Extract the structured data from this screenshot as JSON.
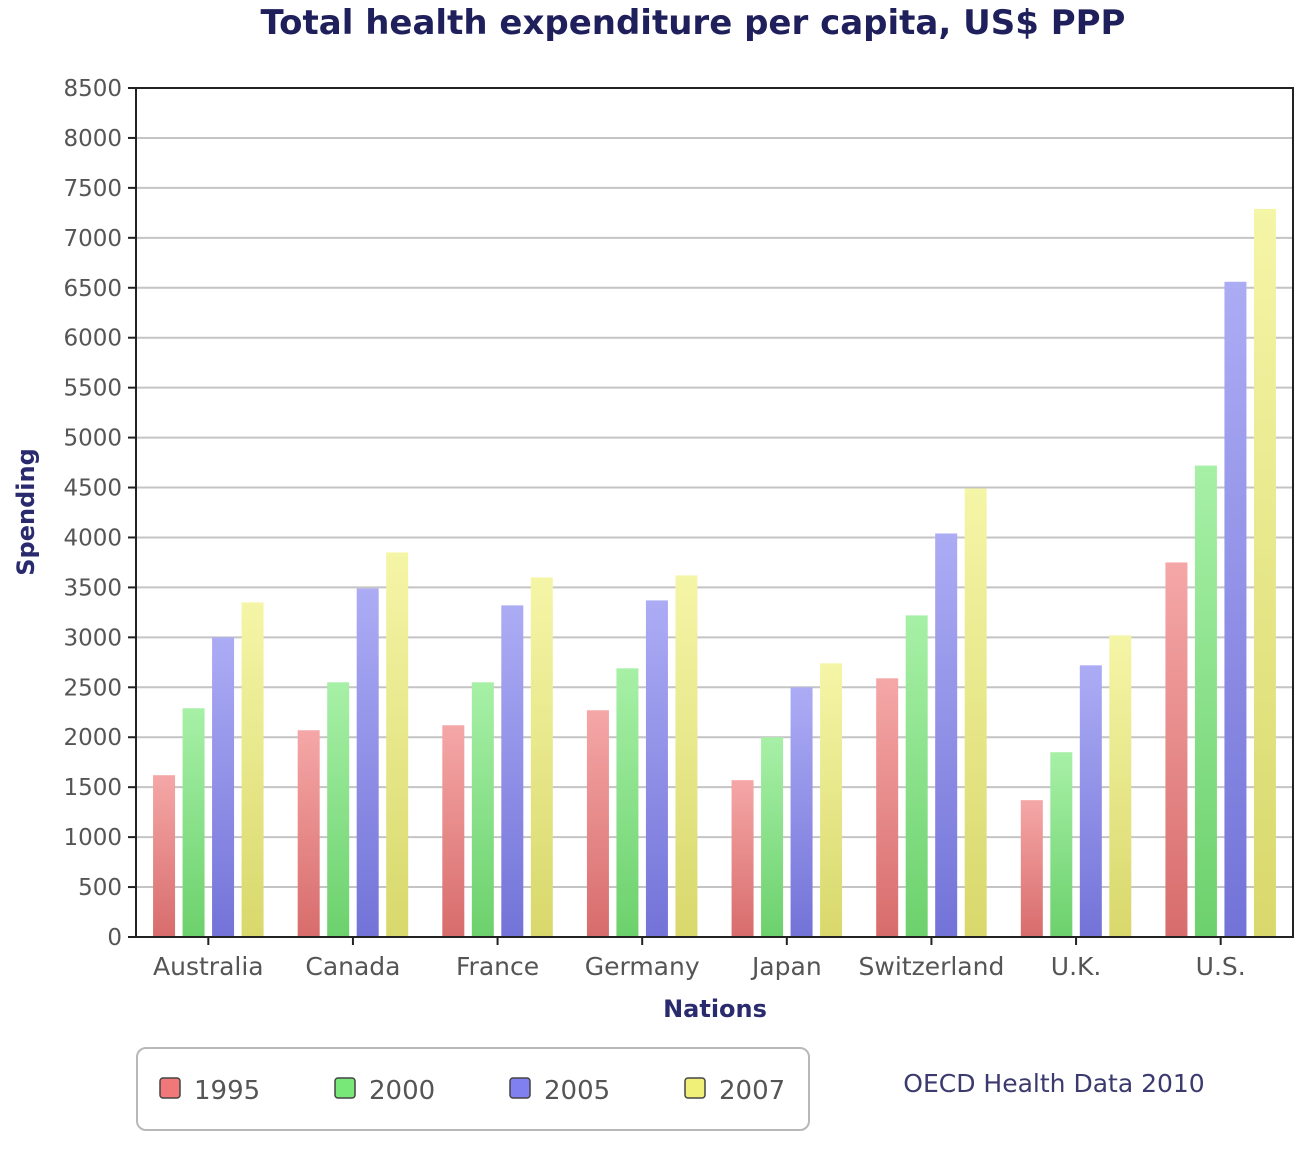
{
  "chart_data": {
    "type": "bar",
    "title": "Total health expenditure per capita, US$ PPP",
    "xlabel": "Nations",
    "ylabel": "Spending",
    "ylim": [
      0,
      8500
    ],
    "yticks": [
      0,
      500,
      1000,
      1500,
      2000,
      2500,
      3000,
      3500,
      4000,
      4500,
      5000,
      5500,
      6000,
      6500,
      7000,
      7500,
      8000,
      8500
    ],
    "ytick_labels": [
      "0",
      "500",
      "1000",
      "1500",
      "2000",
      "2500",
      "3000",
      "3500",
      "4000",
      "4500",
      "5000",
      "5500",
      "6000",
      "6500",
      "7000",
      "7500",
      "8000",
      "8500"
    ],
    "grid": true,
    "categories": [
      "Australia",
      "Canada",
      "France",
      "Germany",
      "Japan",
      "Switzerland",
      "U.K.",
      "U.S."
    ],
    "series": [
      {
        "name": "1995",
        "color": "#f07878",
        "values": [
          1620,
          2070,
          2120,
          2270,
          1570,
          2590,
          1370,
          3750
        ]
      },
      {
        "name": "2000",
        "color": "#78e878",
        "values": [
          2290,
          2550,
          2550,
          2690,
          2000,
          3220,
          1850,
          4720
        ]
      },
      {
        "name": "2005",
        "color": "#8080f0",
        "values": [
          3000,
          3490,
          3320,
          3370,
          2500,
          4040,
          2720,
          6560
        ]
      },
      {
        "name": "2007",
        "color": "#f0f078",
        "values": [
          3350,
          3850,
          3600,
          3620,
          2740,
          4490,
          3020,
          7290
        ]
      }
    ],
    "legend_position": "bottom-left",
    "annotation": "OECD Health Data 2010"
  }
}
